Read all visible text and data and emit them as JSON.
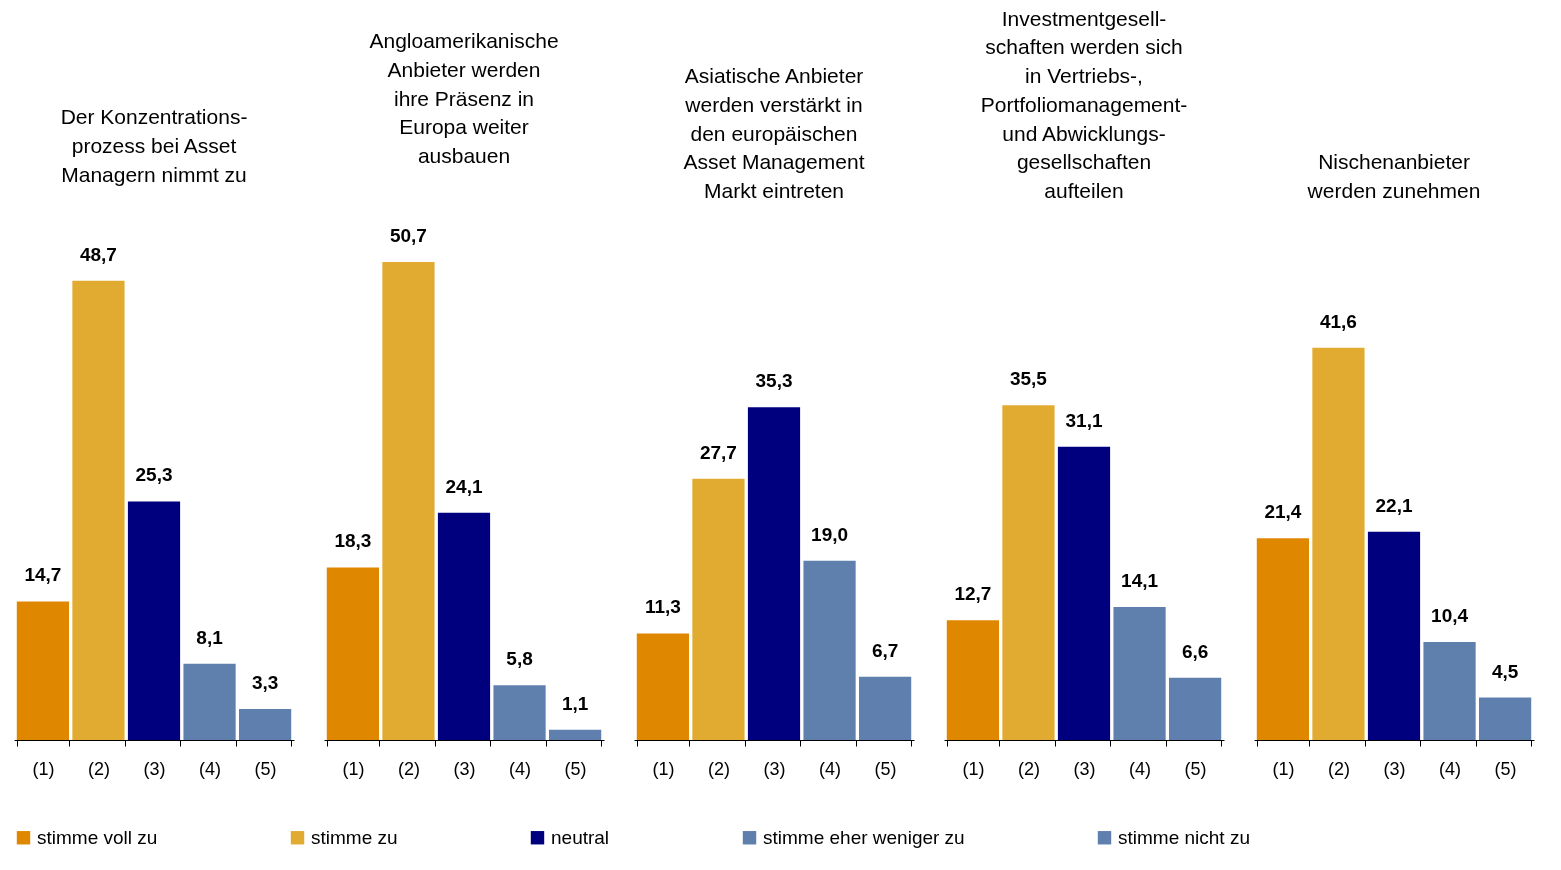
{
  "chart_data": [
    {
      "type": "bar",
      "title": "Der Konzentrations-\nprozess bei Asset\nManagern nimmt zu",
      "categories": [
        "(1)",
        "(2)",
        "(3)",
        "(4)",
        "(5)"
      ],
      "legend": "bottom",
      "series": [
        {
          "name": "stimme voll zu",
          "color": "#e08700",
          "values": [
            14.7,
            null,
            null,
            null,
            null
          ],
          "value_labels": [
            "14,7",
            null,
            null,
            null,
            null
          ]
        },
        {
          "name": "stimme zu",
          "color": "#e1ab32",
          "values": [
            null,
            48.7,
            null,
            null,
            null
          ],
          "value_labels": [
            null,
            "48,7",
            null,
            null,
            null
          ]
        },
        {
          "name": "neutral",
          "color": "#00007f",
          "values": [
            null,
            null,
            25.3,
            null,
            null
          ],
          "value_labels": [
            null,
            null,
            "25,3",
            null,
            null
          ]
        },
        {
          "name": "stimme eher weniger zu",
          "color": "#5f80ad",
          "values": [
            null,
            null,
            null,
            8.1,
            null
          ],
          "value_labels": [
            null,
            null,
            null,
            "8,1",
            null
          ]
        },
        {
          "name": "stimme nicht zu",
          "color": "#5f80ae",
          "values": [
            null,
            null,
            null,
            null,
            3.3
          ],
          "value_labels": [
            null,
            null,
            null,
            null,
            "3,3"
          ]
        }
      ]
    },
    {
      "type": "bar",
      "title": "Angloamerikanische\nAnbieter werden\nihre Präsenz in\nEuropa weiter\nausbauen",
      "categories": [
        "(1)",
        "(2)",
        "(3)",
        "(4)",
        "(5)"
      ],
      "legend": "bottom",
      "series": [
        {
          "name": "stimme voll zu",
          "color": "#e08700",
          "values": [
            18.3,
            null,
            null,
            null,
            null
          ],
          "value_labels": [
            "18,3",
            null,
            null,
            null,
            null
          ]
        },
        {
          "name": "stimme zu",
          "color": "#e1ab32",
          "values": [
            null,
            50.7,
            null,
            null,
            null
          ],
          "value_labels": [
            null,
            "50,7",
            null,
            null,
            null
          ]
        },
        {
          "name": "neutral",
          "color": "#00007f",
          "values": [
            null,
            null,
            24.1,
            null,
            null
          ],
          "value_labels": [
            null,
            null,
            "24,1",
            null,
            null
          ]
        },
        {
          "name": "stimme eher weniger zu",
          "color": "#5f80ad",
          "values": [
            null,
            null,
            null,
            5.8,
            null
          ],
          "value_labels": [
            null,
            null,
            null,
            "5,8",
            null
          ]
        },
        {
          "name": "stimme nicht zu",
          "color": "#5f80ae",
          "values": [
            null,
            null,
            null,
            null,
            1.1
          ],
          "value_labels": [
            null,
            null,
            null,
            null,
            "1,1"
          ]
        }
      ]
    },
    {
      "type": "bar",
      "title": "Asiatische Anbieter\nwerden verstärkt in\nden europäischen\nAsset Management\nMarkt eintreten",
      "categories": [
        "(1)",
        "(2)",
        "(3)",
        "(4)",
        "(5)"
      ],
      "legend": "bottom",
      "series": [
        {
          "name": "stimme voll zu",
          "color": "#e08700",
          "values": [
            11.3,
            null,
            null,
            null,
            null
          ],
          "value_labels": [
            "11,3",
            null,
            null,
            null,
            null
          ]
        },
        {
          "name": "stimme zu",
          "color": "#e1ab32",
          "values": [
            null,
            27.7,
            null,
            null,
            null
          ],
          "value_labels": [
            null,
            "27,7",
            null,
            null,
            null
          ]
        },
        {
          "name": "neutral",
          "color": "#00007f",
          "values": [
            null,
            null,
            35.3,
            null,
            null
          ],
          "value_labels": [
            null,
            null,
            "35,3",
            null,
            null
          ]
        },
        {
          "name": "stimme eher weniger zu",
          "color": "#5f80ad",
          "values": [
            null,
            null,
            null,
            19.0,
            null
          ],
          "value_labels": [
            null,
            null,
            null,
            "19,0",
            null
          ]
        },
        {
          "name": "stimme nicht zu",
          "color": "#5f80ae",
          "values": [
            null,
            null,
            null,
            null,
            6.7
          ],
          "value_labels": [
            null,
            null,
            null,
            null,
            "6,7"
          ]
        }
      ]
    },
    {
      "type": "bar",
      "title": "Investmentgesell-\nschaften werden sich\nin Vertriebs-,\nPortfoliomanagement-\nund Abwicklungs-\ngesellschaften\naufteilen",
      "categories": [
        "(1)",
        "(2)",
        "(3)",
        "(4)",
        "(5)"
      ],
      "legend": "bottom",
      "series": [
        {
          "name": "stimme voll zu",
          "color": "#e08700",
          "values": [
            12.7,
            null,
            null,
            null,
            null
          ],
          "value_labels": [
            "12,7",
            null,
            null,
            null,
            null
          ]
        },
        {
          "name": "stimme zu",
          "color": "#e1ab32",
          "values": [
            null,
            35.5,
            null,
            null,
            null
          ],
          "value_labels": [
            null,
            "35,5",
            null,
            null,
            null
          ]
        },
        {
          "name": "neutral",
          "color": "#00007f",
          "values": [
            null,
            null,
            31.1,
            null,
            null
          ],
          "value_labels": [
            null,
            null,
            "31,1",
            null,
            null
          ]
        },
        {
          "name": "stimme eher weniger zu",
          "color": "#5f80ad",
          "values": [
            null,
            null,
            null,
            14.1,
            null
          ],
          "value_labels": [
            null,
            null,
            null,
            "14,1",
            null
          ]
        },
        {
          "name": "stimme nicht zu",
          "color": "#5f80ae",
          "values": [
            null,
            null,
            null,
            null,
            6.6
          ],
          "value_labels": [
            null,
            null,
            null,
            null,
            "6,6"
          ]
        }
      ]
    },
    {
      "type": "bar",
      "title": "Nischenanbieter\nwerden zunehmen",
      "categories": [
        "(1)",
        "(2)",
        "(3)",
        "(4)",
        "(5)"
      ],
      "legend": "bottom",
      "series": [
        {
          "name": "stimme voll zu",
          "color": "#e08700",
          "values": [
            21.4,
            null,
            null,
            null,
            null
          ],
          "value_labels": [
            "21,4",
            null,
            null,
            null,
            null
          ]
        },
        {
          "name": "stimme zu",
          "color": "#e1ab32",
          "values": [
            null,
            41.6,
            null,
            null,
            null
          ],
          "value_labels": [
            null,
            "41,6",
            null,
            null,
            null
          ]
        },
        {
          "name": "neutral",
          "color": "#00007f",
          "values": [
            null,
            null,
            22.1,
            null,
            null
          ],
          "value_labels": [
            null,
            null,
            "22,1",
            null,
            null
          ]
        },
        {
          "name": "stimme eher weniger zu",
          "color": "#5f80ad",
          "values": [
            null,
            null,
            null,
            10.4,
            null
          ],
          "value_labels": [
            null,
            null,
            null,
            "10,4",
            null
          ]
        },
        {
          "name": "stimme nicht zu",
          "color": "#5f80ae",
          "values": [
            null,
            null,
            null,
            null,
            4.5
          ],
          "value_labels": [
            null,
            null,
            null,
            null,
            "4,5"
          ]
        }
      ]
    }
  ]
}
